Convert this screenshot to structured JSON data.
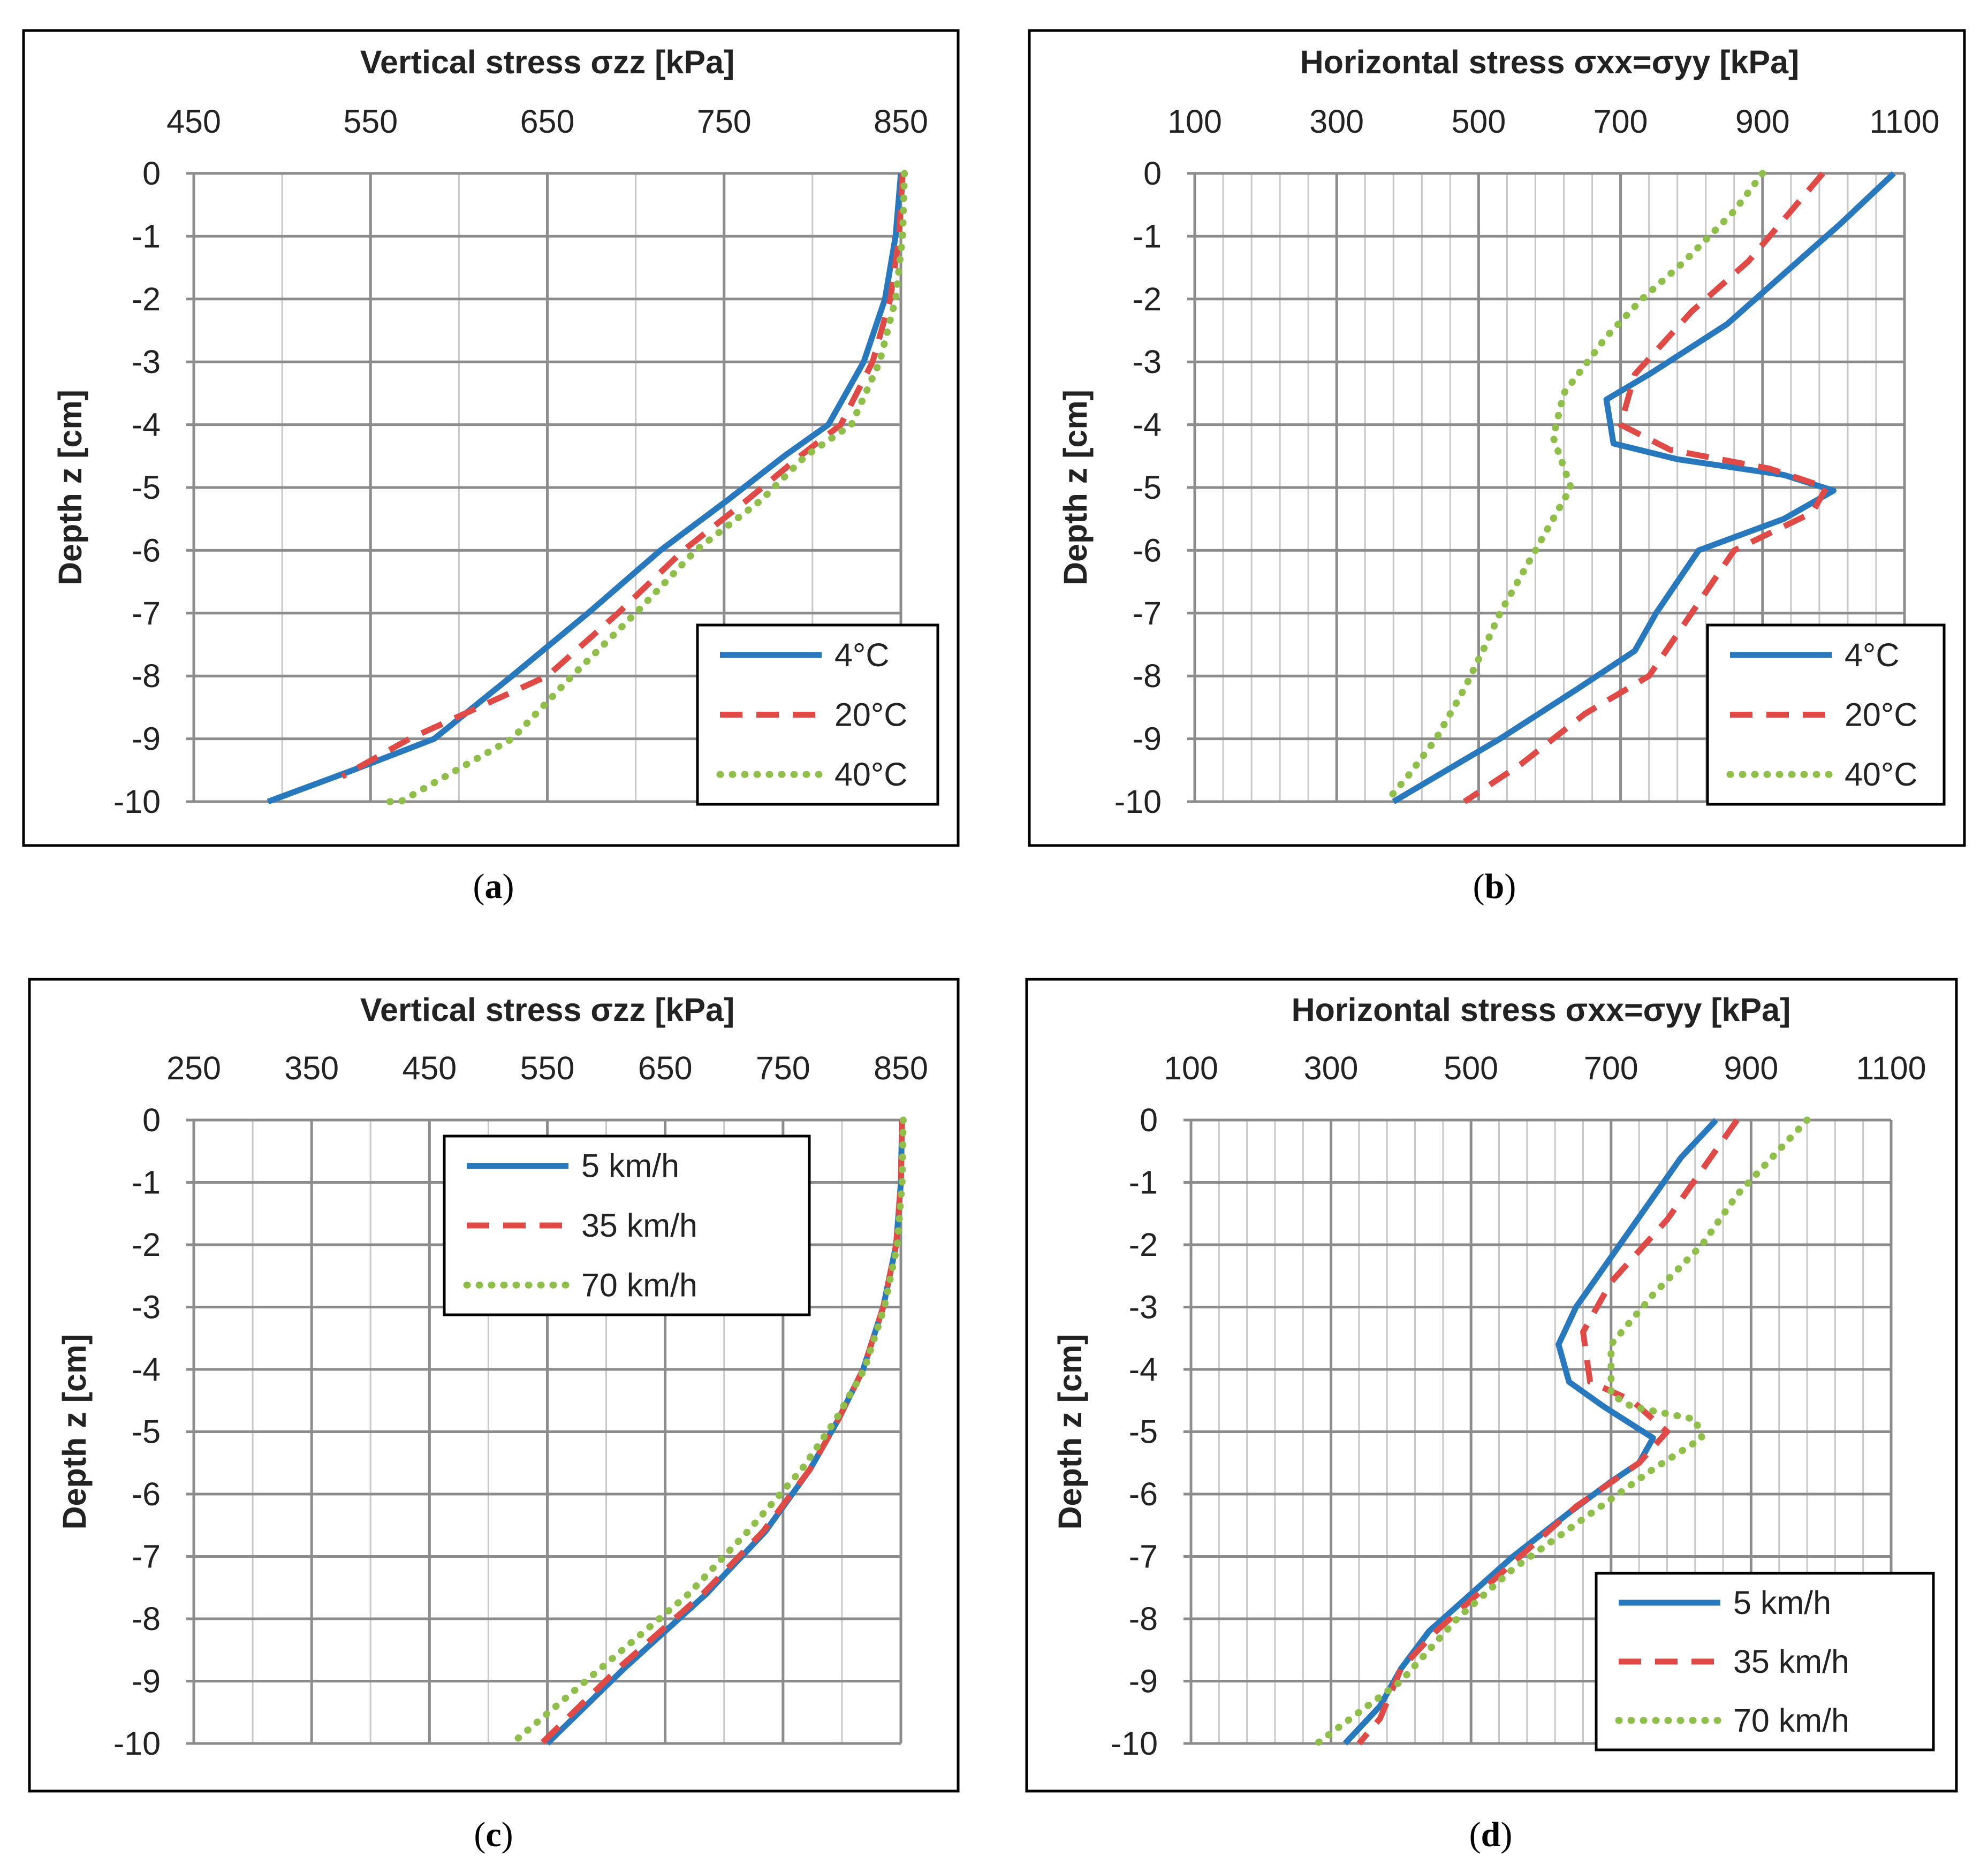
{
  "colors": {
    "blue": "#2878be",
    "red": "#e04a46",
    "green": "#8fbf4a"
  },
  "chart_data": [
    {
      "type": "line",
      "title": "Vertical stress σzz [kPa]",
      "xlabel": "Vertical stress σzz [kPa]",
      "ylabel": "Depth z [cm]",
      "caption": "a",
      "xlim": [
        450,
        850
      ],
      "ylim": [
        -10,
        0
      ],
      "x_ticks": [
        "450",
        "550",
        "650",
        "750",
        "850"
      ],
      "y_ticks": [
        "0",
        "-1",
        "-2",
        "-3",
        "-4",
        "-5",
        "-6",
        "-7",
        "-8",
        "-9",
        "-10"
      ],
      "minor_x_step": 50,
      "legend_position": "bottom-right",
      "series": [
        {
          "name": "4°C",
          "style": "solid",
          "color": "#2878be",
          "x": [
            850,
            847,
            841,
            829,
            809,
            784,
            752,
            714,
            673,
            630,
            586,
            540,
            492
          ],
          "y": [
            0,
            -1,
            -2,
            -3,
            -4,
            -4.5,
            -5.2,
            -6,
            -7,
            -8,
            -9,
            -9.5,
            -10
          ]
        },
        {
          "name": "20°C",
          "style": "dashed",
          "color": "#e04a46",
          "x": [
            851,
            849,
            844,
            834,
            816,
            793,
            763,
            727,
            690,
            650,
            572,
            534
          ],
          "y": [
            0,
            -1,
            -2,
            -3,
            -4,
            -4.5,
            -5.2,
            -6,
            -7,
            -8,
            -9,
            -9.6
          ]
        },
        {
          "name": "40°C",
          "style": "dotted",
          "color": "#8fbf4a",
          "x": [
            852,
            851,
            847,
            838,
            822,
            796,
            771,
            734,
            700,
            664,
            630,
            567,
            556
          ],
          "y": [
            0,
            -1,
            -2,
            -3,
            -4,
            -4.5,
            -5.2,
            -6,
            -7,
            -8,
            -9,
            -10,
            -10
          ]
        }
      ]
    },
    {
      "type": "line",
      "title": "Horizontal stress σxx=σyy [kPa]",
      "xlabel": "Horizontal stress σxx=σyy [kPa]",
      "ylabel": "Depth z [cm]",
      "caption": "b",
      "xlim": [
        100,
        1100
      ],
      "ylim": [
        -10,
        0
      ],
      "x_ticks": [
        "100",
        "300",
        "500",
        "700",
        "900",
        "1100"
      ],
      "y_ticks": [
        "0",
        "-1",
        "-2",
        "-3",
        "-4",
        "-5",
        "-6",
        "-7",
        "-8",
        "-9",
        "-10"
      ],
      "minor_x_step": 40,
      "legend_position": "bottom-right",
      "series": [
        {
          "name": "4°C",
          "style": "solid",
          "color": "#2878be",
          "x": [
            1085,
            1010,
            930,
            850,
            740,
            680,
            690,
            780,
            930,
            1000,
            930,
            810,
            750,
            720,
            640,
            530,
            440,
            380
          ],
          "y": [
            0,
            -0.8,
            -1.6,
            -2.4,
            -3.2,
            -3.6,
            -4.3,
            -4.55,
            -4.8,
            -5.05,
            -5.5,
            -6,
            -7,
            -7.6,
            -8.2,
            -9,
            -9.6,
            -10
          ]
        },
        {
          "name": "20°C",
          "style": "dashed",
          "color": "#e04a46",
          "x": [
            985,
            940,
            880,
            800,
            720,
            700,
            770,
            910,
            990,
            970,
            860,
            800,
            740,
            650,
            560,
            480
          ],
          "y": [
            0,
            -0.6,
            -1.4,
            -2.2,
            -3.2,
            -4,
            -4.4,
            -4.7,
            -5,
            -5.4,
            -6,
            -7,
            -8,
            -8.6,
            -9.4,
            -10
          ]
        },
        {
          "name": "40°C",
          "style": "dotted",
          "color": "#8fbf4a",
          "x": [
            900,
            860,
            790,
            730,
            680,
            620,
            605,
            630,
            580,
            530,
            510,
            480,
            440,
            400,
            370
          ],
          "y": [
            0,
            -0.6,
            -1.4,
            -2,
            -2.6,
            -3.5,
            -4.2,
            -5,
            -6,
            -7,
            -7.5,
            -8.2,
            -9,
            -9.6,
            -10
          ]
        }
      ]
    },
    {
      "type": "line",
      "title": "Vertical stress σzz [kPa]",
      "xlabel": "Vertical stress σzz [kPa]",
      "ylabel": "Depth z [cm]",
      "caption": "c",
      "xlim": [
        250,
        850
      ],
      "ylim": [
        -10,
        0
      ],
      "x_ticks": [
        "250",
        "350",
        "450",
        "550",
        "650",
        "750",
        "850"
      ],
      "y_ticks": [
        "0",
        "-1",
        "-2",
        "-3",
        "-4",
        "-5",
        "-6",
        "-7",
        "-8",
        "-9",
        "-10"
      ],
      "minor_x_step": 50,
      "legend_position": "top-center",
      "series": [
        {
          "name": "5 km/h",
          "style": "solid",
          "color": "#2878be",
          "x": [
            851,
            850,
            846,
            835,
            818,
            797,
            773,
            735,
            685,
            615,
            550
          ],
          "y": [
            0,
            -1,
            -2,
            -3,
            -4,
            -4.8,
            -5.6,
            -6.6,
            -7.6,
            -8.8,
            -10
          ]
        },
        {
          "name": "35 km/h",
          "style": "dashed",
          "color": "#e04a46",
          "x": [
            851,
            850,
            846,
            835,
            818,
            797,
            773,
            733,
            682,
            610,
            545
          ],
          "y": [
            0,
            -1,
            -2,
            -3,
            -4,
            -4.8,
            -5.6,
            -6.6,
            -7.6,
            -8.8,
            -10
          ]
        },
        {
          "name": "70 km/h",
          "style": "dotted",
          "color": "#8fbf4a",
          "x": [
            852,
            851,
            847,
            836,
            819,
            795,
            766,
            720,
            670,
            595,
            520
          ],
          "y": [
            0,
            -1,
            -2,
            -3,
            -4,
            -4.8,
            -5.6,
            -6.6,
            -7.6,
            -8.8,
            -10
          ]
        }
      ]
    },
    {
      "type": "line",
      "title": "Horizontal stress σxx=σyy [kPa]",
      "xlabel": "Horizontal stress σxx=σyy [kPa]",
      "ylabel": "Depth z [cm]",
      "caption": "d",
      "xlim": [
        100,
        1100
      ],
      "ylim": [
        -10,
        0
      ],
      "x_ticks": [
        "100",
        "300",
        "500",
        "700",
        "900",
        "1100"
      ],
      "y_ticks": [
        "0",
        "-1",
        "-2",
        "-3",
        "-4",
        "-5",
        "-6",
        "-7",
        "-8",
        "-9",
        "-10"
      ],
      "minor_x_step": 40,
      "legend_position": "bottom-right",
      "series": [
        {
          "name": "5 km/h",
          "style": "solid",
          "color": "#2878be",
          "x": [
            850,
            800,
            750,
            700,
            650,
            625,
            640,
            690,
            760,
            740,
            700,
            640,
            560,
            500,
            440,
            400,
            370,
            320
          ],
          "y": [
            0,
            -0.6,
            -1.4,
            -2.2,
            -3,
            -3.6,
            -4.2,
            -4.6,
            -5.1,
            -5.5,
            -5.8,
            -6.3,
            -7,
            -7.6,
            -8.2,
            -8.8,
            -9.4,
            -10
          ]
        },
        {
          "name": "35 km/h",
          "style": "dashed",
          "color": "#e04a46",
          "x": [
            880,
            830,
            780,
            700,
            660,
            670,
            730,
            780,
            740,
            650,
            570,
            510,
            450,
            400,
            370,
            340
          ],
          "y": [
            0,
            -0.8,
            -1.6,
            -2.6,
            -3.4,
            -4.2,
            -4.5,
            -5,
            -5.5,
            -6.2,
            -7,
            -7.6,
            -8.2,
            -8.8,
            -9.6,
            -10
          ]
        },
        {
          "name": "70 km/h",
          "style": "dotted",
          "color": "#8fbf4a",
          "x": [
            980,
            930,
            880,
            830,
            760,
            700,
            700,
            730,
            820,
            830,
            760,
            660,
            560,
            480,
            400,
            280
          ],
          "y": [
            0,
            -0.6,
            -1.2,
            -2,
            -2.8,
            -3.6,
            -4.4,
            -4.6,
            -4.8,
            -5.1,
            -5.6,
            -6.4,
            -7.2,
            -8,
            -9,
            -10
          ]
        }
      ]
    }
  ]
}
